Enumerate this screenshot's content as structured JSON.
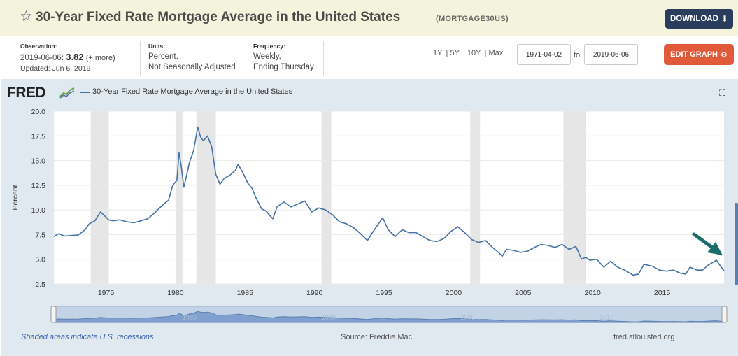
{
  "header": {
    "title": "30-Year Fixed Rate Mortgage Average in the United States",
    "series_id": "(MORTGAGE30US)",
    "download_label": "DOWNLOAD",
    "star_icon": "star-outline-icon",
    "download_icon": "download-icon"
  },
  "info": {
    "observation_label": "Observation:",
    "observation_date": "2019-06-06:",
    "observation_value": "3.82",
    "observation_more": "(+ more)",
    "updated": "Updated: Jun 6, 2019",
    "units_label": "Units:",
    "units_line1": "Percent,",
    "units_line2": "Not Seasonally Adjusted",
    "frequency_label": "Frequency:",
    "frequency_line1": "Weekly,",
    "frequency_line2": "Ending Thursday"
  },
  "controls": {
    "ranges": [
      "1Y",
      "5Y",
      "10Y",
      "Max"
    ],
    "start_date": "1971-04-02",
    "to_label": "to",
    "end_date": "2019-06-06",
    "edit_label": "EDIT GRAPH",
    "edit_icon": "gear-icon"
  },
  "graph": {
    "logo_text": "FRED",
    "legend": "30-Year Fixed Rate Mortgage Average in the United States",
    "recession_note": "Shaded areas indicate U.S. recessions",
    "source": "Source: Freddie Mac",
    "site": "fred.stlouisfed.org",
    "line_color": "#4572a7",
    "recession_color": "#e6e6e6",
    "annotation_arrow_color": "#1a6b6b"
  },
  "chart_data": {
    "type": "line",
    "title": "",
    "xlabel": "",
    "ylabel": "Percent",
    "ylim": [
      2.5,
      20.0
    ],
    "yticks": [
      2.5,
      5.0,
      7.5,
      10.0,
      12.5,
      15.0,
      17.5,
      20.0
    ],
    "ytick_labels": [
      "2.5",
      "5.0",
      "7.5",
      "10.0",
      "12.5",
      "15.0",
      "17.5",
      "20.0"
    ],
    "xlim": [
      1971.25,
      2019.45
    ],
    "xticks": [
      1975,
      1980,
      1985,
      1990,
      1995,
      2000,
      2005,
      2010,
      2015
    ],
    "grid": true,
    "recessions": [
      [
        1973.9,
        1975.2
      ],
      [
        1980.0,
        1980.5
      ],
      [
        1981.5,
        1982.9
      ],
      [
        1990.5,
        1991.2
      ],
      [
        2001.2,
        2001.9
      ],
      [
        2007.9,
        2009.5
      ]
    ],
    "series": [
      {
        "name": "30-Year Fixed Rate Mortgage Average in the United States",
        "x": [
          1971.25,
          1971.6,
          1972.0,
          1972.5,
          1973.0,
          1973.5,
          1973.8,
          1974.2,
          1974.6,
          1974.9,
          1975.2,
          1975.5,
          1976.0,
          1976.5,
          1977.0,
          1977.5,
          1978.0,
          1978.5,
          1979.0,
          1979.5,
          1979.8,
          1980.1,
          1980.25,
          1980.4,
          1980.6,
          1980.8,
          1981.0,
          1981.3,
          1981.6,
          1981.8,
          1982.0,
          1982.3,
          1982.6,
          1982.9,
          1983.2,
          1983.5,
          1983.9,
          1984.3,
          1984.5,
          1984.8,
          1985.2,
          1985.5,
          1985.8,
          1986.2,
          1986.5,
          1987.0,
          1987.3,
          1987.8,
          1988.3,
          1988.8,
          1989.3,
          1989.8,
          1990.3,
          1990.8,
          1991.3,
          1991.8,
          1992.3,
          1992.8,
          1993.3,
          1993.8,
          1994.3,
          1994.9,
          1995.3,
          1995.8,
          1996.3,
          1996.8,
          1997.3,
          1997.8,
          1998.3,
          1998.8,
          1999.3,
          1999.8,
          2000.3,
          2000.8,
          2001.3,
          2001.8,
          2002.3,
          2002.8,
          2003.3,
          2003.5,
          2003.8,
          2004.3,
          2004.8,
          2005.3,
          2005.8,
          2006.3,
          2006.8,
          2007.3,
          2007.8,
          2008.3,
          2008.8,
          2009.2,
          2009.5,
          2009.8,
          2010.3,
          2010.8,
          2011.3,
          2011.8,
          2012.3,
          2012.9,
          2013.3,
          2013.7,
          2014.3,
          2014.8,
          2015.3,
          2015.8,
          2016.3,
          2016.7,
          2017.0,
          2017.5,
          2017.9,
          2018.3,
          2018.9,
          2019.2,
          2019.45
        ],
        "values": [
          7.3,
          7.6,
          7.35,
          7.4,
          7.45,
          8.0,
          8.6,
          8.9,
          9.8,
          9.4,
          9.0,
          8.9,
          9.0,
          8.8,
          8.7,
          8.9,
          9.1,
          9.7,
          10.4,
          11.0,
          12.5,
          13.0,
          15.8,
          14.5,
          12.3,
          13.5,
          14.8,
          16.0,
          18.4,
          17.4,
          17.0,
          17.5,
          16.4,
          13.6,
          12.6,
          13.2,
          13.5,
          14.0,
          14.6,
          13.9,
          12.7,
          12.2,
          11.2,
          10.1,
          9.9,
          9.1,
          10.3,
          10.8,
          10.3,
          10.6,
          10.9,
          9.8,
          10.2,
          10.0,
          9.5,
          8.8,
          8.6,
          8.2,
          7.6,
          6.9,
          8.0,
          9.2,
          8.0,
          7.3,
          8.0,
          7.7,
          7.7,
          7.3,
          6.9,
          6.8,
          7.1,
          7.8,
          8.3,
          7.7,
          7.0,
          6.7,
          6.9,
          6.2,
          5.6,
          5.3,
          6.0,
          5.9,
          5.7,
          5.8,
          6.2,
          6.5,
          6.4,
          6.2,
          6.5,
          6.0,
          6.3,
          5.0,
          5.2,
          4.9,
          5.0,
          4.2,
          4.8,
          4.2,
          3.9,
          3.4,
          3.5,
          4.5,
          4.3,
          3.9,
          3.8,
          3.9,
          3.6,
          3.5,
          4.2,
          3.9,
          3.9,
          4.4,
          4.9,
          4.3,
          3.82
        ]
      }
    ],
    "navigator_labels": [
      "1980",
      "1990",
      "2000",
      "2010"
    ]
  }
}
